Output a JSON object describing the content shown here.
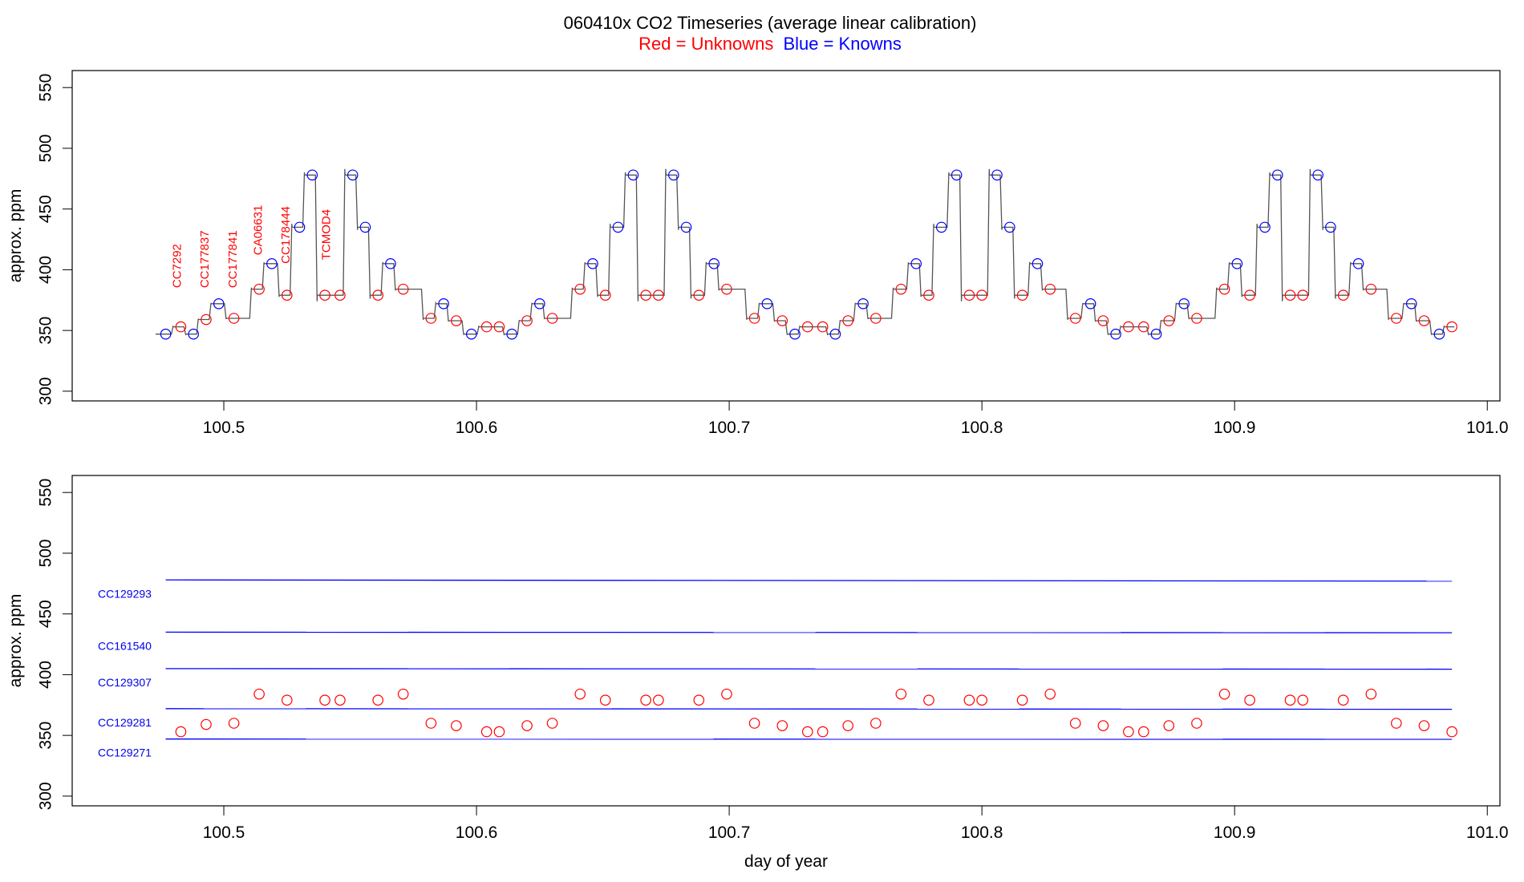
{
  "colors": {
    "unknown": "#ff0000",
    "known": "#0000ff",
    "trace": "#555555",
    "frame": "#000000"
  },
  "title": {
    "main": "060410x   CO2 Timeseries (average linear calibration)",
    "legend_red": "Red = Unknowns",
    "legend_blue": "Blue = Knowns"
  },
  "chart_data": [
    {
      "type": "line",
      "ylabel": "approx. ppm",
      "xlabel": "",
      "xlim": [
        100.44,
        101.005
      ],
      "ylim": [
        292,
        564
      ],
      "x_ticks": [
        100.5,
        100.6,
        100.7,
        100.8,
        100.9,
        101.0
      ],
      "x_tick_labels": [
        "100.5",
        "100.6",
        "100.7",
        "100.8",
        "100.9",
        "101.0"
      ],
      "y_ticks": [
        300,
        350,
        400,
        450,
        500,
        550
      ],
      "y_tick_labels": [
        "300",
        "350",
        "400",
        "450",
        "500",
        "550"
      ],
      "trace_start": 100.473,
      "step_length": 0.005,
      "gas_labels": [
        {
          "text": "CC7292",
          "x": 100.483,
          "y": 385
        },
        {
          "text": "CC177837",
          "x": 100.494,
          "y": 385
        },
        {
          "text": "CC177841",
          "x": 100.505,
          "y": 385
        },
        {
          "text": "CA06631",
          "x": 100.515,
          "y": 412
        },
        {
          "text": "CC178444",
          "x": 100.526,
          "y": 405
        },
        {
          "text": "TCMOD4",
          "x": 100.542,
          "y": 408
        }
      ],
      "series": [
        {
          "name": "Red = Unknowns",
          "points": [
            [
              100.483,
              353
            ],
            [
              100.493,
              359
            ],
            [
              100.504,
              360
            ],
            [
              100.514,
              384
            ],
            [
              100.525,
              379
            ],
            [
              100.54,
              379
            ],
            [
              100.546,
              379
            ],
            [
              100.561,
              379
            ],
            [
              100.571,
              384
            ],
            [
              100.582,
              360
            ],
            [
              100.592,
              358
            ],
            [
              100.604,
              353
            ],
            [
              100.609,
              353
            ],
            [
              100.62,
              358
            ],
            [
              100.63,
              360
            ],
            [
              100.641,
              384
            ],
            [
              100.651,
              379
            ],
            [
              100.667,
              379
            ],
            [
              100.672,
              379
            ],
            [
              100.688,
              379
            ],
            [
              100.699,
              384
            ],
            [
              100.71,
              360
            ],
            [
              100.721,
              358
            ],
            [
              100.731,
              353
            ],
            [
              100.737,
              353
            ],
            [
              100.747,
              358
            ],
            [
              100.758,
              360
            ],
            [
              100.768,
              384
            ],
            [
              100.779,
              379
            ],
            [
              100.795,
              379
            ],
            [
              100.8,
              379
            ],
            [
              100.816,
              379
            ],
            [
              100.827,
              384
            ],
            [
              100.837,
              360
            ],
            [
              100.848,
              358
            ],
            [
              100.858,
              353
            ],
            [
              100.864,
              353
            ],
            [
              100.874,
              358
            ],
            [
              100.885,
              360
            ],
            [
              100.896,
              384
            ],
            [
              100.906,
              379
            ],
            [
              100.922,
              379
            ],
            [
              100.927,
              379
            ],
            [
              100.943,
              379
            ],
            [
              100.954,
              384
            ],
            [
              100.964,
              360
            ],
            [
              100.975,
              358
            ],
            [
              100.986,
              353
            ]
          ]
        },
        {
          "name": "Blue = Knowns",
          "points": [
            [
              100.477,
              347
            ],
            [
              100.488,
              347
            ],
            [
              100.498,
              372
            ],
            [
              100.519,
              405
            ],
            [
              100.53,
              435
            ],
            [
              100.535,
              478
            ],
            [
              100.551,
              478
            ],
            [
              100.556,
              435
            ],
            [
              100.566,
              405
            ],
            [
              100.587,
              372
            ],
            [
              100.598,
              347
            ],
            [
              100.614,
              347
            ],
            [
              100.625,
              372
            ],
            [
              100.646,
              405
            ],
            [
              100.656,
              435
            ],
            [
              100.662,
              478
            ],
            [
              100.678,
              478
            ],
            [
              100.683,
              435
            ],
            [
              100.694,
              405
            ],
            [
              100.715,
              372
            ],
            [
              100.726,
              347
            ],
            [
              100.742,
              347
            ],
            [
              100.753,
              372
            ],
            [
              100.774,
              405
            ],
            [
              100.784,
              435
            ],
            [
              100.79,
              478
            ],
            [
              100.806,
              478
            ],
            [
              100.811,
              435
            ],
            [
              100.822,
              405
            ],
            [
              100.843,
              372
            ],
            [
              100.853,
              347
            ],
            [
              100.869,
              347
            ],
            [
              100.88,
              372
            ],
            [
              100.901,
              405
            ],
            [
              100.912,
              435
            ],
            [
              100.917,
              478
            ],
            [
              100.933,
              478
            ],
            [
              100.938,
              435
            ],
            [
              100.949,
              405
            ],
            [
              100.97,
              372
            ],
            [
              100.981,
              347
            ]
          ]
        }
      ]
    },
    {
      "type": "scatter",
      "ylabel": "approx. ppm",
      "xlabel": "day of year",
      "xlim": [
        100.44,
        101.005
      ],
      "ylim": [
        292,
        564
      ],
      "x_ticks": [
        100.5,
        100.6,
        100.7,
        100.8,
        100.9,
        101.0
      ],
      "x_tick_labels": [
        "100.5",
        "100.6",
        "100.7",
        "100.8",
        "100.9",
        "101.0"
      ],
      "y_ticks": [
        300,
        350,
        400,
        450,
        500,
        550
      ],
      "y_tick_labels": [
        "300",
        "350",
        "400",
        "450",
        "500",
        "550"
      ],
      "reference_lines": [
        {
          "name": "CC129293",
          "x": [
            100.477,
            100.986
          ],
          "y": [
            478,
            477
          ]
        },
        {
          "name": "CC161540",
          "x": [
            100.477,
            100.986
          ],
          "y": [
            435,
            434.5
          ]
        },
        {
          "name": "CC129307",
          "x": [
            100.477,
            100.986
          ],
          "y": [
            405,
            404.5
          ]
        },
        {
          "name": "CC129281",
          "x": [
            100.477,
            100.986
          ],
          "y": [
            372,
            371.5
          ]
        },
        {
          "name": "CC129271",
          "x": [
            100.477,
            100.986
          ],
          "y": [
            347,
            346.8
          ]
        }
      ],
      "series": [
        {
          "name": "Red = Unknowns",
          "points": [
            [
              100.483,
              353
            ],
            [
              100.493,
              359
            ],
            [
              100.504,
              360
            ],
            [
              100.514,
              384
            ],
            [
              100.525,
              379
            ],
            [
              100.54,
              379
            ],
            [
              100.546,
              379
            ],
            [
              100.561,
              379
            ],
            [
              100.571,
              384
            ],
            [
              100.582,
              360
            ],
            [
              100.592,
              358
            ],
            [
              100.604,
              353
            ],
            [
              100.609,
              353
            ],
            [
              100.62,
              358
            ],
            [
              100.63,
              360
            ],
            [
              100.641,
              384
            ],
            [
              100.651,
              379
            ],
            [
              100.667,
              379
            ],
            [
              100.672,
              379
            ],
            [
              100.688,
              379
            ],
            [
              100.699,
              384
            ],
            [
              100.71,
              360
            ],
            [
              100.721,
              358
            ],
            [
              100.731,
              353
            ],
            [
              100.737,
              353
            ],
            [
              100.747,
              358
            ],
            [
              100.758,
              360
            ],
            [
              100.768,
              384
            ],
            [
              100.779,
              379
            ],
            [
              100.795,
              379
            ],
            [
              100.8,
              379
            ],
            [
              100.816,
              379
            ],
            [
              100.827,
              384
            ],
            [
              100.837,
              360
            ],
            [
              100.848,
              358
            ],
            [
              100.858,
              353
            ],
            [
              100.864,
              353
            ],
            [
              100.874,
              358
            ],
            [
              100.885,
              360
            ],
            [
              100.896,
              384
            ],
            [
              100.906,
              379
            ],
            [
              100.922,
              379
            ],
            [
              100.927,
              379
            ],
            [
              100.943,
              379
            ],
            [
              100.954,
              384
            ],
            [
              100.964,
              360
            ],
            [
              100.975,
              358
            ],
            [
              100.986,
              353
            ]
          ]
        }
      ]
    }
  ]
}
